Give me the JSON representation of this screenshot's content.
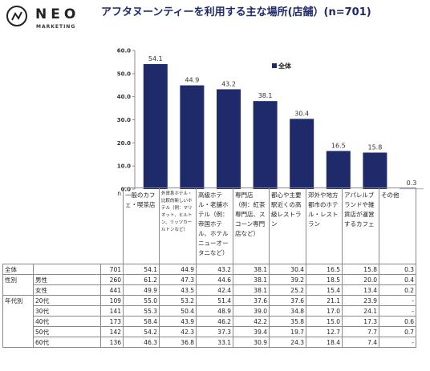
{
  "brand": {
    "name": "NEO",
    "sub": "MARKETING"
  },
  "title": "アフタヌーンティーを利用する主な場所(店舗）(n=701)",
  "n_label": "n",
  "chart_data": {
    "type": "bar",
    "categories": [
      "一般のカフェ・喫茶店",
      "外資系ホテル・比較的新しいホテル（例：マリオット、ヒルトン、リッツカールトンなど）",
      "高級ホテル・老舗ホテル（例：帝国ホテル、ホテルニューオータニなど）",
      "専門店（例：紅茶専門店、スコーン専門店など）",
      "都心や主要駅近くの高級レストラン",
      "郊外や地方都市のホテル・レストラン",
      "アパレルブランドや雑貨店が運営するカフェ",
      "その他"
    ],
    "series": [
      {
        "name": "全体",
        "values": [
          54.1,
          44.9,
          43.2,
          38.1,
          30.4,
          16.5,
          15.8,
          0.3
        ]
      }
    ],
    "value_labels": [
      "54.1",
      "44.9",
      "43.2",
      "38.1",
      "30.4",
      "16.5",
      "15.8",
      "0.3"
    ],
    "ylim": [
      0,
      60
    ],
    "yticks": [
      "0.0",
      "10.0",
      "20.0",
      "30.0",
      "40.0",
      "50.0",
      "60.0"
    ],
    "legend_position": "top-right",
    "grid": false,
    "colors": {
      "bar": "#1f2a6b",
      "bar_small": "#9aa6d6"
    }
  },
  "table": {
    "header_cells": [
      "一般のカフェ・喫茶店",
      "外資系ホテル・比較的新しいホテル（例：マリオット、ヒルトン、リッツカールトンなど）",
      "高級ホテル・老舗ホテル（例：帝国ホテル、ホテルニューオータニなど）",
      "専門店（例：紅茶専門店、スコーン専門店など）",
      "都心や主要駅近くの高級レストラン",
      "郊外や地方都市のホテル・レストラン",
      "アパレルブランドや雑貨店が運営するカフェ",
      "その他"
    ],
    "rows": [
      {
        "group": "全体",
        "label": "",
        "n": "701",
        "values": [
          "54.1",
          "44.9",
          "43.2",
          "38.1",
          "30.4",
          "16.5",
          "15.8",
          "0.3"
        ]
      },
      {
        "group": "性別",
        "label": "男性",
        "n": "260",
        "values": [
          "61.2",
          "47.3",
          "44.6",
          "38.1",
          "39.2",
          "18.5",
          "20.0",
          "0.4"
        ]
      },
      {
        "group": "",
        "label": "女性",
        "n": "441",
        "values": [
          "49.9",
          "43.5",
          "42.4",
          "38.1",
          "25.2",
          "15.4",
          "13.4",
          "0.2"
        ]
      },
      {
        "group": "年代別",
        "label": "20代",
        "n": "109",
        "values": [
          "55.0",
          "53.2",
          "51.4",
          "37.6",
          "37.6",
          "21.1",
          "23.9",
          "-"
        ]
      },
      {
        "group": "",
        "label": "30代",
        "n": "141",
        "values": [
          "55.3",
          "50.4",
          "48.9",
          "39.0",
          "34.8",
          "17.0",
          "24.1",
          "-"
        ]
      },
      {
        "group": "",
        "label": "40代",
        "n": "173",
        "values": [
          "58.4",
          "43.9",
          "46.2",
          "42.2",
          "35.8",
          "15.0",
          "17.3",
          "0.6"
        ]
      },
      {
        "group": "",
        "label": "50代",
        "n": "142",
        "values": [
          "54.2",
          "42.3",
          "37.3",
          "39.4",
          "19.7",
          "12.7",
          "7.7",
          "0.7"
        ]
      },
      {
        "group": "",
        "label": "60代",
        "n": "136",
        "values": [
          "46.3",
          "36.8",
          "33.1",
          "30.9",
          "24.3",
          "18.4",
          "7.4",
          "-"
        ]
      }
    ]
  }
}
